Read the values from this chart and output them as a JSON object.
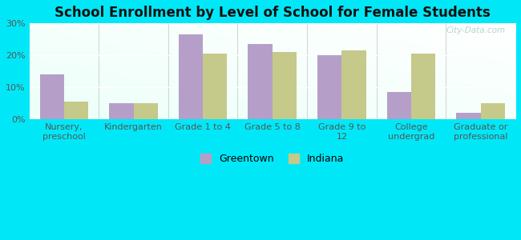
{
  "title": "School Enrollment by Level of School for Female Students",
  "categories": [
    "Nursery,\npreschool",
    "Kindergarten",
    "Grade 1 to 4",
    "Grade 5 to 8",
    "Grade 9 to\n12",
    "College\nundergrad",
    "Graduate or\nprofessional"
  ],
  "greentown": [
    14.0,
    5.0,
    26.5,
    23.5,
    20.0,
    8.5,
    2.0
  ],
  "indiana": [
    5.5,
    5.0,
    20.5,
    21.0,
    21.5,
    20.5,
    5.0
  ],
  "greentown_color": "#b59fc8",
  "indiana_color": "#c5c98a",
  "background_outer": "#00e8f8",
  "gradient_top_left": "#f0faf0",
  "gradient_bottom_right": "#ffffff",
  "ylim": [
    0,
    30
  ],
  "yticks": [
    0,
    10,
    20,
    30
  ],
  "ytick_labels": [
    "0%",
    "10%",
    "20%",
    "30%"
  ],
  "legend_greentown": "Greentown",
  "legend_indiana": "Indiana",
  "bar_width": 0.35,
  "watermark": "City-Data.com",
  "title_fontsize": 12,
  "tick_fontsize": 8,
  "legend_fontsize": 9
}
